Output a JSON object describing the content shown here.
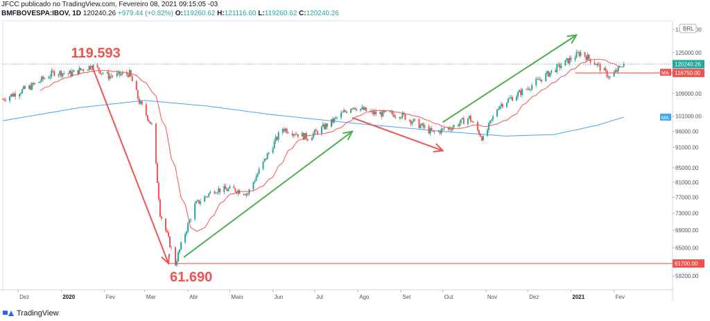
{
  "header": {
    "publisher_line": "JFCC publicado no TradingView.com, Fevereiro 08, 2021 09:15:05 -03",
    "symbol": "BMFBOVESPA:IBOV, 1D",
    "last": "120240.26",
    "change": "+979.44 (+0.82%)",
    "open_label": "O:",
    "open": "119260.62",
    "high_label": "H:",
    "high": "121116.60",
    "low_label": "L:",
    "low": "119260.62",
    "close_label": "C:",
    "close": "120240.26"
  },
  "footer": {
    "brand": "TradingView"
  },
  "colors": {
    "up": "#26a69a",
    "down": "#ef5350",
    "ma_short": "#ef5350",
    "ma_long": "#42a5f5",
    "arrow_up": "#4caf50",
    "arrow_down": "#ef5350",
    "annot": "#ef5350"
  },
  "chart_data": {
    "type": "candlestick",
    "currency": "BRL",
    "y_scale": "log",
    "ylim": [
      56500,
      139000
    ],
    "y_ticks": [
      135000,
      125000,
      117000,
      109000,
      101000,
      96000,
      91000,
      85000,
      81000,
      77000,
      73000,
      69000,
      65000,
      59200
    ],
    "y_tick_labels": [
      "135000.00",
      "125000.00",
      "117000.00",
      "109000.00",
      "101000.00",
      "96000.00",
      "91000.00",
      "85000.00",
      "81000.00",
      "77000.00",
      "73000.00",
      "69000.00",
      "65000.00",
      "59200.00"
    ],
    "x_labels": [
      {
        "text": "Dez",
        "date": "2019-12-01",
        "bold": false
      },
      {
        "text": "2020",
        "date": "2020-01-01",
        "bold": true
      },
      {
        "text": "Fev",
        "date": "2020-02-01",
        "bold": false
      },
      {
        "text": "Mar",
        "date": "2020-03-01",
        "bold": false
      },
      {
        "text": "Abr",
        "date": "2020-04-01",
        "bold": false
      },
      {
        "text": "Maio",
        "date": "2020-05-01",
        "bold": false
      },
      {
        "text": "Jun",
        "date": "2020-06-01",
        "bold": false
      },
      {
        "text": "Jul",
        "date": "2020-07-01",
        "bold": false
      },
      {
        "text": "Ago",
        "date": "2020-08-01",
        "bold": false
      },
      {
        "text": "Set",
        "date": "2020-09-01",
        "bold": false
      },
      {
        "text": "Out",
        "date": "2020-10-01",
        "bold": false
      },
      {
        "text": "Nov",
        "date": "2020-11-01",
        "bold": false
      },
      {
        "text": "Dez",
        "date": "2020-12-01",
        "bold": false
      },
      {
        "text": "2021",
        "date": "2021-01-01",
        "bold": true
      },
      {
        "text": "Fev",
        "date": "2021-02-01",
        "bold": false
      }
    ],
    "x_range": [
      "2019-11-20",
      "2021-03-15"
    ],
    "price_key_points": [
      [
        "2019-11-20",
        107000
      ],
      [
        "2019-12-10",
        111500
      ],
      [
        "2019-12-27",
        117000
      ],
      [
        "2020-01-08",
        116500
      ],
      [
        "2020-01-23",
        119593
      ],
      [
        "2020-02-04",
        115500
      ],
      [
        "2020-02-19",
        116500
      ],
      [
        "2020-02-26",
        106000
      ],
      [
        "2020-03-06",
        98000
      ],
      [
        "2020-03-12",
        73000
      ],
      [
        "2020-03-23",
        61690
      ],
      [
        "2020-04-06",
        75000
      ],
      [
        "2020-04-20",
        79000
      ],
      [
        "2020-05-05",
        79000
      ],
      [
        "2020-05-14",
        78000
      ],
      [
        "2020-06-08",
        97000
      ],
      [
        "2020-06-26",
        94000
      ],
      [
        "2020-07-13",
        99000
      ],
      [
        "2020-07-28",
        104500
      ],
      [
        "2020-08-12",
        102000
      ],
      [
        "2020-09-01",
        101500
      ],
      [
        "2020-09-24",
        95500
      ],
      [
        "2020-10-08",
        97500
      ],
      [
        "2020-10-20",
        100500
      ],
      [
        "2020-10-30",
        93500
      ],
      [
        "2020-11-10",
        104500
      ],
      [
        "2020-12-01",
        111000
      ],
      [
        "2020-12-20",
        118000
      ],
      [
        "2021-01-08",
        125000
      ],
      [
        "2021-01-20",
        120000
      ],
      [
        "2021-01-29",
        115000
      ],
      [
        "2021-02-08",
        120240
      ]
    ],
    "last_price": 120240.26,
    "ma_short_level": 116750.0,
    "support_level": 61700.0,
    "ma_long_points": [
      [
        "2019-11-20",
        99500
      ],
      [
        "2020-01-15",
        104000
      ],
      [
        "2020-03-01",
        106500
      ],
      [
        "2020-04-15",
        104500
      ],
      [
        "2020-06-01",
        101500
      ],
      [
        "2020-08-01",
        98500
      ],
      [
        "2020-10-01",
        96000
      ],
      [
        "2020-11-15",
        94500
      ],
      [
        "2020-12-20",
        95000
      ],
      [
        "2021-01-20",
        98000
      ],
      [
        "2021-02-08",
        100700
      ]
    ],
    "price_labels": [
      {
        "text": "120240.26",
        "value": 120240.26,
        "color": "#26a69a"
      },
      {
        "text": "116750.00",
        "value": 116750.0,
        "color": "#ef5350"
      },
      {
        "text": "61700.00",
        "value": 61700.0,
        "color": "#ef5350"
      }
    ],
    "ma_tags": [
      {
        "text": "MA",
        "value": 117000,
        "color": "#ef5350"
      },
      {
        "text": "MA",
        "value": 100700,
        "color": "#42a5f5"
      }
    ],
    "annotations": [
      {
        "text": "119.593",
        "date": "2020-01-23",
        "value": 119593
      },
      {
        "text": "61.690",
        "date": "2020-03-23",
        "value": 61690
      }
    ],
    "arrows": [
      {
        "kind": "down",
        "from": [
          "2020-01-23",
          119593
        ],
        "to": [
          "2020-03-18",
          61700
        ]
      },
      {
        "kind": "up",
        "from": [
          "2020-03-29",
          63000
        ],
        "to": [
          "2020-07-28",
          96000
        ]
      },
      {
        "kind": "down",
        "from": [
          "2020-07-28",
          100500
        ],
        "to": [
          "2020-10-01",
          90000
        ]
      },
      {
        "kind": "up",
        "from": [
          "2020-10-01",
          99000
        ],
        "to": [
          "2021-01-05",
          132500
        ]
      }
    ],
    "hlines": [
      {
        "value": 61700,
        "from": "2020-03-18",
        "to": "2021-03-15"
      },
      {
        "value": 116750,
        "from": "2021-01-04",
        "to": "2021-03-15"
      }
    ]
  }
}
